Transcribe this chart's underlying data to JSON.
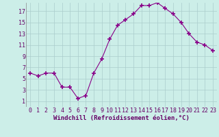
{
  "x": [
    0,
    1,
    2,
    3,
    4,
    5,
    6,
    7,
    8,
    9,
    10,
    11,
    12,
    13,
    14,
    15,
    16,
    17,
    18,
    19,
    20,
    21,
    22,
    23
  ],
  "y": [
    6.0,
    5.5,
    6.0,
    6.0,
    3.5,
    3.5,
    1.5,
    2.0,
    6.0,
    8.5,
    12.0,
    14.5,
    15.5,
    16.5,
    18.0,
    18.0,
    18.5,
    17.5,
    16.5,
    15.0,
    13.0,
    11.5,
    11.0,
    10.0
  ],
  "line_color": "#880088",
  "marker": "+",
  "marker_size": 4,
  "marker_lw": 1.2,
  "bg_color": "#cceee8",
  "grid_color": "#aacccc",
  "xlabel": "Windchill (Refroidissement éolien,°C)",
  "xlabel_color": "#660066",
  "xlabel_fontsize": 6.5,
  "tick_color": "#660066",
  "tick_fontsize": 6.0,
  "xlim": [
    -0.5,
    23.5
  ],
  "ylim": [
    0,
    18.5
  ],
  "yticks": [
    1,
    3,
    5,
    7,
    9,
    11,
    13,
    15,
    17
  ],
  "xticks": [
    0,
    1,
    2,
    3,
    4,
    5,
    6,
    7,
    8,
    9,
    10,
    11,
    12,
    13,
    14,
    15,
    16,
    17,
    18,
    19,
    20,
    21,
    22,
    23
  ]
}
